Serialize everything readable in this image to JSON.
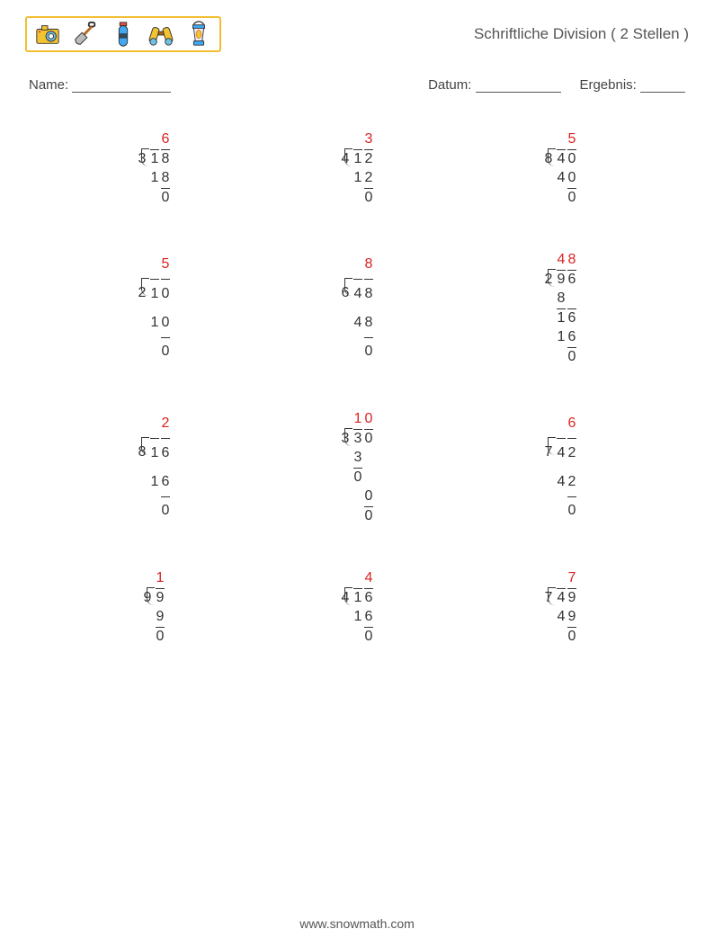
{
  "title": "Schriftliche Division ( 2 Stellen )",
  "labels": {
    "name": "Name:",
    "date": "Datum:",
    "result": "Ergebnis:"
  },
  "footer": "www.snowmath.com",
  "colors": {
    "quotient": "#d22",
    "text": "#333",
    "icon_border": "#f0be2f"
  },
  "font_size": 16,
  "icons": [
    "camera",
    "shovel",
    "bottle",
    "binoculars",
    "lantern"
  ],
  "grid": {
    "rows": 4,
    "cols": 3
  },
  "problems": [
    {
      "divisor": 3,
      "dividend": 18,
      "quotient": "6",
      "steps": [
        [
          1,
          8
        ],
        [
          "bar",
          0
        ]
      ]
    },
    {
      "divisor": 4,
      "dividend": 12,
      "quotient": "3",
      "steps": [
        [
          1,
          2
        ],
        [
          "bar",
          0
        ]
      ]
    },
    {
      "divisor": 8,
      "dividend": 40,
      "quotient": "5",
      "steps": [
        [
          4,
          0
        ],
        [
          "bar",
          0
        ]
      ]
    },
    {
      "divisor": 2,
      "dividend": 10,
      "quotient": "5",
      "steps": [
        [
          1,
          0
        ],
        [
          "bar",
          0
        ]
      ]
    },
    {
      "divisor": 6,
      "dividend": 48,
      "quotient": "8",
      "steps": [
        [
          4,
          8
        ],
        [
          "bar",
          0
        ]
      ]
    },
    {
      "divisor": 2,
      "dividend": 96,
      "quotient": "48",
      "steps": [
        [
          8,
          null
        ],
        [
          "bar2",
          1,
          6
        ],
        [
          1,
          6
        ],
        [
          "bar",
          0
        ]
      ]
    },
    {
      "divisor": 8,
      "dividend": 16,
      "quotient": "2",
      "steps": [
        [
          1,
          6
        ],
        [
          "bar",
          0
        ]
      ]
    },
    {
      "divisor": 3,
      "dividend": 30,
      "quotient": "10",
      "steps": [
        [
          3,
          null
        ],
        [
          "bar2",
          0,
          null
        ],
        [
          null,
          0
        ],
        [
          "bar",
          0
        ]
      ]
    },
    {
      "divisor": 7,
      "dividend": 42,
      "quotient": "6",
      "steps": [
        [
          4,
          2
        ],
        [
          "bar",
          0
        ]
      ]
    },
    {
      "divisor": 9,
      "dividend": 9,
      "quotient": "1",
      "single": true,
      "steps": [
        [
          9
        ],
        [
          "bar1",
          0
        ]
      ]
    },
    {
      "divisor": 4,
      "dividend": 16,
      "quotient": "4",
      "steps": [
        [
          1,
          6
        ],
        [
          "bar",
          0
        ]
      ]
    },
    {
      "divisor": 7,
      "dividend": 49,
      "quotient": "7",
      "steps": [
        [
          4,
          9
        ],
        [
          "bar",
          0
        ]
      ]
    }
  ]
}
